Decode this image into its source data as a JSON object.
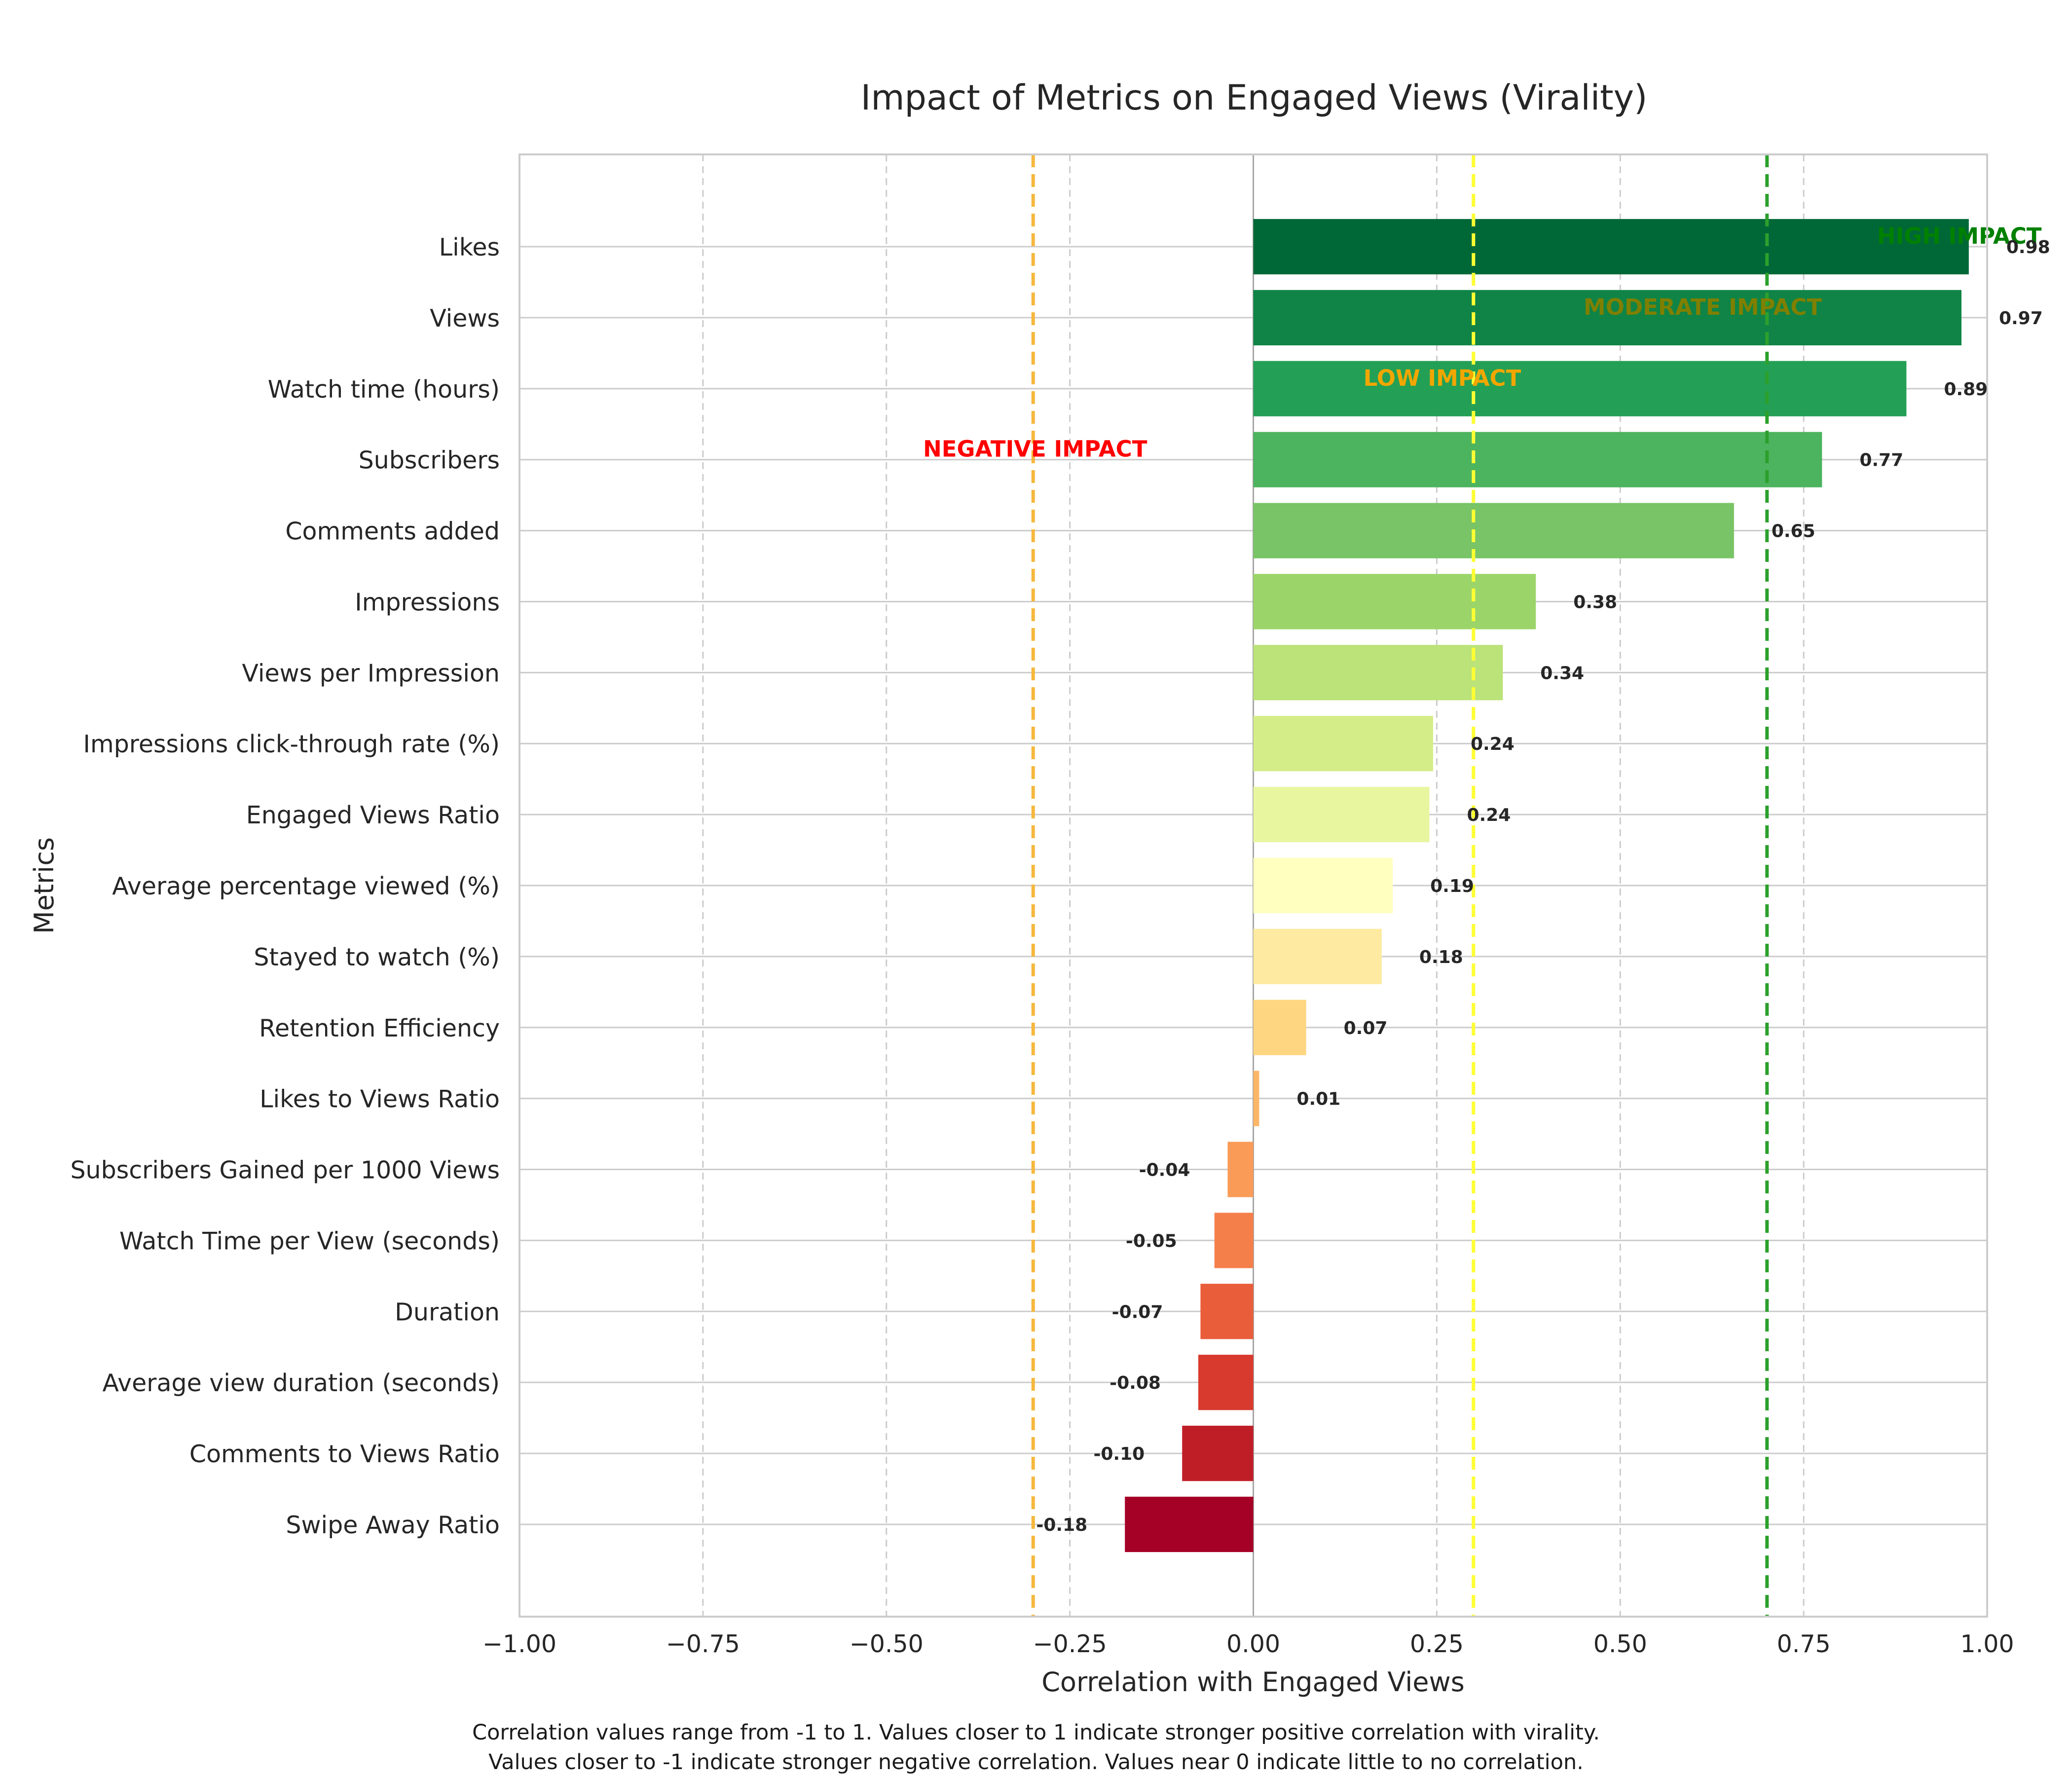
{
  "chart_data": {
    "type": "bar",
    "orientation": "horizontal",
    "title": "Impact of Metrics on Engaged Views (Virality)",
    "xlabel": "Correlation with Engaged Views",
    "ylabel": "Metrics",
    "xlim": [
      -1.0,
      1.0
    ],
    "xticks": [
      "−1.00",
      "−0.75",
      "−0.50",
      "−0.25",
      "0.00",
      "0.25",
      "0.50",
      "0.75",
      "1.00"
    ],
    "grid": true,
    "categories": [
      "Likes",
      "Views",
      "Watch time (hours)",
      "Subscribers",
      "Comments added",
      "Impressions",
      "Views per Impression",
      "Impressions click-through rate (%)",
      "Engaged Views Ratio",
      "Average percentage viewed (%)",
      "Stayed to watch (%)",
      "Retention Efficiency",
      "Likes to Views Ratio",
      "Subscribers Gained per 1000 Views",
      "Watch Time per View (seconds)",
      "Duration",
      "Average view duration (seconds)",
      "Comments to Views Ratio",
      "Swipe Away Ratio"
    ],
    "values": [
      0.975,
      0.965,
      0.89,
      0.775,
      0.655,
      0.385,
      0.34,
      0.245,
      0.24,
      0.19,
      0.175,
      0.072,
      0.008,
      -0.035,
      -0.053,
      -0.072,
      -0.075,
      -0.097,
      -0.175
    ],
    "value_labels": [
      "0.98",
      "0.97",
      "0.89",
      "0.77",
      "0.65",
      "0.38",
      "0.34",
      "0.24",
      "0.24",
      "0.19",
      "0.18",
      "0.07",
      "0.01",
      "-0.04",
      "-0.05",
      "-0.07",
      "-0.08",
      "-0.10",
      "-0.18"
    ],
    "bar_colors": [
      "#006837",
      "#0f8446",
      "#23a055",
      "#4cb35e",
      "#78c466",
      "#9bd56a",
      "#bbe379",
      "#d5ed88",
      "#e8f6a0",
      "#ffffbf",
      "#feeba1",
      "#fed682",
      "#fdb668",
      "#fa9b58",
      "#f57f4a",
      "#e95d3a",
      "#d83a2d",
      "#c01e27",
      "#a50026"
    ],
    "thresholds": [
      {
        "value": 0.7,
        "color": "#2ca02c",
        "label": "HIGH IMPACT",
        "label_color": "#008000"
      },
      {
        "value": 0.3,
        "color": "#ffff33",
        "label": "MODERATE IMPACT",
        "label_color": "#7f7f00"
      },
      {
        "value": -0.3,
        "color": "#f5b73d",
        "label": "LOW IMPACT",
        "label_color": "#f2a600"
      },
      {
        "value": null,
        "color": "#ff0000",
        "label": "NEGATIVE IMPACT",
        "label_color": "#ff0000"
      }
    ]
  },
  "caption": {
    "line1": "Correlation values range from -1 to 1. Values closer to 1 indicate stronger positive correlation with virality.",
    "line2": "Values closer to -1 indicate stronger negative correlation. Values near 0 indicate little to no correlation."
  }
}
